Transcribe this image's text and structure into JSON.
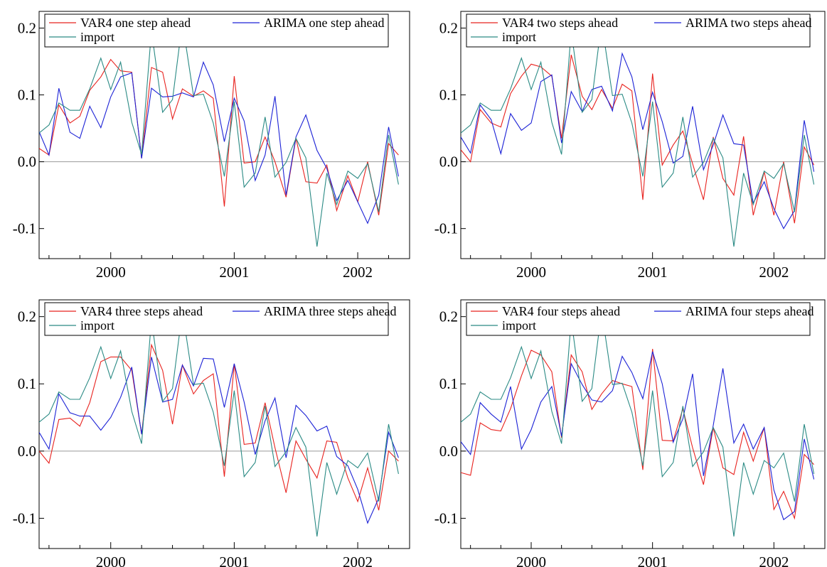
{
  "colors": {
    "var4": "#e8231f",
    "arima": "#1c22d6",
    "import": "#2a8a84",
    "zero": "#999999",
    "axis": "#000000"
  },
  "chart_data": [
    {
      "type": "line",
      "xlim": [
        1999.42,
        2002.42
      ],
      "ylim": [
        -0.145,
        0.225
      ],
      "y_ticks": [
        -0.1,
        0.0,
        0.1,
        0.2
      ],
      "y_tick_labels": [
        "-0.1",
        "0.0",
        "0.1",
        "0.2"
      ],
      "x_ticks": [
        2000,
        2001,
        2002
      ],
      "x_tick_labels": [
        "2000",
        "2001",
        "2002"
      ],
      "legend_placement": "top",
      "x": [
        1999.42,
        1999.5,
        1999.58,
        1999.67,
        1999.75,
        1999.83,
        1999.92,
        2000.0,
        2000.08,
        2000.17,
        2000.25,
        2000.33,
        2000.42,
        2000.5,
        2000.58,
        2000.67,
        2000.75,
        2000.83,
        2000.92,
        2001.0,
        2001.08,
        2001.17,
        2001.25,
        2001.33,
        2001.42,
        2001.5,
        2001.58,
        2001.67,
        2001.75,
        2001.83,
        2001.92,
        2002.0,
        2002.08,
        2002.17,
        2002.25,
        2002.33
      ],
      "series": [
        {
          "name": "VAR4 one step ahead",
          "key": "var4",
          "values": [
            0.02,
            0.01,
            0.085,
            0.058,
            0.068,
            0.107,
            0.127,
            0.153,
            0.136,
            0.134,
            0.005,
            0.141,
            0.134,
            0.064,
            0.109,
            0.098,
            0.106,
            0.095,
            -0.067,
            0.128,
            -0.002,
            0.0,
            0.037,
            0.0,
            -0.053,
            0.035,
            -0.03,
            -0.032,
            -0.005,
            -0.073,
            -0.021,
            -0.06,
            0.0,
            -0.08,
            0.027,
            0.01
          ]
        },
        {
          "name": "ARIMA one step ahead",
          "key": "arima",
          "values": [
            0.045,
            0.01,
            0.11,
            0.044,
            0.035,
            0.083,
            0.051,
            0.097,
            0.127,
            0.133,
            0.005,
            0.11,
            0.097,
            0.098,
            0.103,
            0.097,
            0.149,
            0.115,
            0.03,
            0.095,
            0.061,
            -0.028,
            0.01,
            0.098,
            -0.05,
            0.037,
            0.07,
            0.017,
            -0.01,
            -0.058,
            -0.028,
            -0.06,
            -0.092,
            -0.05,
            0.052,
            -0.022
          ]
        },
        {
          "name": "import",
          "key": "import",
          "values": [
            0.043,
            0.055,
            0.088,
            0.077,
            0.077,
            0.109,
            0.155,
            0.108,
            0.149,
            0.059,
            0.011,
            0.196,
            0.074,
            0.093,
            0.209,
            0.099,
            0.101,
            0.058,
            -0.022,
            0.09,
            -0.038,
            -0.017,
            0.067,
            -0.023,
            -0.001,
            0.035,
            0.006,
            -0.127,
            -0.017,
            -0.064,
            -0.014,
            -0.025,
            -0.003,
            -0.075,
            0.04,
            -0.034
          ]
        }
      ]
    },
    {
      "type": "line",
      "xlim": [
        1999.42,
        2002.42
      ],
      "ylim": [
        -0.145,
        0.225
      ],
      "y_ticks": [
        -0.1,
        0.0,
        0.1,
        0.2
      ],
      "y_tick_labels": [
        "-0.1",
        "0.0",
        "0.1",
        "0.2"
      ],
      "x_ticks": [
        2000,
        2001,
        2002
      ],
      "x_tick_labels": [
        "2000",
        "2001",
        "2002"
      ],
      "legend_placement": "top",
      "x": [
        1999.42,
        1999.5,
        1999.58,
        1999.67,
        1999.75,
        1999.83,
        1999.92,
        2000.0,
        2000.08,
        2000.17,
        2000.25,
        2000.33,
        2000.42,
        2000.5,
        2000.58,
        2000.67,
        2000.75,
        2000.83,
        2000.92,
        2001.0,
        2001.08,
        2001.17,
        2001.25,
        2001.33,
        2001.42,
        2001.5,
        2001.58,
        2001.67,
        2001.75,
        2001.83,
        2001.92,
        2002.0,
        2002.08,
        2002.17,
        2002.25,
        2002.33
      ],
      "series": [
        {
          "name": "VAR4 two steps ahead",
          "key": "var4",
          "values": [
            0.018,
            0.0,
            0.078,
            0.058,
            0.052,
            0.102,
            0.128,
            0.146,
            0.142,
            0.128,
            0.035,
            0.16,
            0.098,
            0.078,
            0.108,
            0.08,
            0.116,
            0.106,
            -0.057,
            0.132,
            -0.005,
            0.025,
            0.046,
            -0.003,
            -0.057,
            0.037,
            -0.025,
            -0.05,
            0.038,
            -0.08,
            -0.015,
            -0.08,
            0.0,
            -0.092,
            0.022,
            -0.005
          ]
        },
        {
          "name": "ARIMA two steps ahead",
          "key": "arima",
          "values": [
            0.037,
            0.013,
            0.085,
            0.063,
            0.012,
            0.072,
            0.047,
            0.058,
            0.12,
            0.13,
            0.028,
            0.105,
            0.075,
            0.108,
            0.113,
            0.076,
            0.162,
            0.127,
            0.048,
            0.104,
            0.06,
            -0.002,
            0.008,
            0.083,
            -0.012,
            0.025,
            0.07,
            0.027,
            0.025,
            -0.062,
            -0.03,
            -0.07,
            -0.1,
            -0.073,
            0.062,
            -0.015
          ]
        },
        {
          "name": "import",
          "key": "import",
          "values": [
            0.043,
            0.055,
            0.088,
            0.077,
            0.077,
            0.109,
            0.155,
            0.108,
            0.149,
            0.059,
            0.011,
            0.196,
            0.074,
            0.093,
            0.209,
            0.099,
            0.101,
            0.058,
            -0.022,
            0.09,
            -0.038,
            -0.017,
            0.067,
            -0.023,
            -0.001,
            0.035,
            0.006,
            -0.127,
            -0.017,
            -0.064,
            -0.014,
            -0.025,
            -0.003,
            -0.075,
            0.04,
            -0.034
          ]
        }
      ]
    },
    {
      "type": "line",
      "xlim": [
        1999.42,
        2002.42
      ],
      "ylim": [
        -0.145,
        0.225
      ],
      "y_ticks": [
        -0.1,
        0.0,
        0.1,
        0.2
      ],
      "y_tick_labels": [
        "-0.1",
        "0.0",
        "0.1",
        "0.2"
      ],
      "x_ticks": [
        2000,
        2001,
        2002
      ],
      "x_tick_labels": [
        "2000",
        "2001",
        "2002"
      ],
      "legend_placement": "top",
      "x": [
        1999.42,
        1999.5,
        1999.58,
        1999.67,
        1999.75,
        1999.83,
        1999.92,
        2000.0,
        2000.08,
        2000.17,
        2000.25,
        2000.33,
        2000.42,
        2000.5,
        2000.58,
        2000.67,
        2000.75,
        2000.83,
        2000.92,
        2001.0,
        2001.08,
        2001.17,
        2001.25,
        2001.33,
        2001.42,
        2001.5,
        2001.58,
        2001.67,
        2001.75,
        2001.83,
        2001.92,
        2002.0,
        2002.08,
        2002.17,
        2002.25,
        2002.33
      ],
      "series": [
        {
          "name": "VAR4 three steps ahead",
          "key": "var4",
          "values": [
            0.0,
            -0.018,
            0.047,
            0.049,
            0.037,
            0.072,
            0.133,
            0.14,
            0.14,
            0.12,
            0.025,
            0.158,
            0.12,
            0.04,
            0.128,
            0.085,
            0.105,
            0.115,
            -0.038,
            0.13,
            0.01,
            0.012,
            0.072,
            0.005,
            -0.062,
            0.015,
            -0.012,
            -0.04,
            0.015,
            0.013,
            -0.04,
            -0.075,
            -0.025,
            -0.088,
            0.0,
            -0.015
          ]
        },
        {
          "name": "ARIMA three steps ahead",
          "key": "arima",
          "values": [
            0.028,
            0.003,
            0.085,
            0.057,
            0.052,
            0.052,
            0.031,
            0.05,
            0.08,
            0.125,
            0.025,
            0.14,
            0.073,
            0.077,
            0.128,
            0.097,
            0.138,
            0.137,
            0.065,
            0.13,
            0.073,
            -0.005,
            0.045,
            0.079,
            -0.01,
            0.068,
            0.053,
            0.03,
            0.037,
            -0.008,
            -0.022,
            -0.057,
            -0.107,
            -0.07,
            0.028,
            -0.01
          ]
        },
        {
          "name": "import",
          "key": "import",
          "values": [
            0.043,
            0.055,
            0.088,
            0.077,
            0.077,
            0.109,
            0.155,
            0.108,
            0.149,
            0.059,
            0.011,
            0.196,
            0.074,
            0.093,
            0.209,
            0.099,
            0.101,
            0.058,
            -0.022,
            0.09,
            -0.038,
            -0.017,
            0.067,
            -0.023,
            -0.001,
            0.035,
            0.006,
            -0.127,
            -0.017,
            -0.064,
            -0.014,
            -0.025,
            -0.003,
            -0.075,
            0.04,
            -0.034
          ]
        }
      ]
    },
    {
      "type": "line",
      "xlim": [
        1999.42,
        2002.42
      ],
      "ylim": [
        -0.145,
        0.225
      ],
      "y_ticks": [
        -0.1,
        0.0,
        0.1,
        0.2
      ],
      "y_tick_labels": [
        "-0.1",
        "0.0",
        "0.1",
        "0.2"
      ],
      "x_ticks": [
        2000,
        2001,
        2002
      ],
      "x_tick_labels": [
        "2000",
        "2001",
        "2002"
      ],
      "legend_placement": "top",
      "x": [
        1999.42,
        1999.5,
        1999.58,
        1999.67,
        1999.75,
        1999.83,
        1999.92,
        2000.0,
        2000.08,
        2000.17,
        2000.25,
        2000.33,
        2000.42,
        2000.5,
        2000.58,
        2000.67,
        2000.75,
        2000.83,
        2000.92,
        2001.0,
        2001.08,
        2001.17,
        2001.25,
        2001.33,
        2001.42,
        2001.5,
        2001.58,
        2001.67,
        2001.75,
        2001.83,
        2001.92,
        2002.0,
        2002.08,
        2002.17,
        2002.25,
        2002.33
      ],
      "series": [
        {
          "name": "VAR4 four steps ahead",
          "key": "var4",
          "values": [
            -0.032,
            -0.036,
            0.042,
            0.032,
            0.03,
            0.063,
            0.112,
            0.15,
            0.143,
            0.118,
            0.02,
            0.143,
            0.118,
            0.062,
            0.085,
            0.105,
            0.1,
            0.096,
            -0.028,
            0.152,
            0.016,
            0.015,
            0.063,
            0.005,
            -0.05,
            0.035,
            -0.025,
            -0.035,
            0.028,
            -0.015,
            0.035,
            -0.087,
            -0.06,
            -0.1,
            -0.005,
            -0.02
          ]
        },
        {
          "name": "ARIMA four steps ahead",
          "key": "arima",
          "values": [
            0.014,
            -0.005,
            0.072,
            0.055,
            0.043,
            0.096,
            0.003,
            0.032,
            0.073,
            0.096,
            0.022,
            0.13,
            0.099,
            0.076,
            0.073,
            0.09,
            0.141,
            0.117,
            0.078,
            0.148,
            0.1,
            0.013,
            0.048,
            0.115,
            -0.037,
            0.038,
            0.123,
            0.012,
            0.04,
            0.003,
            0.035,
            -0.058,
            -0.102,
            -0.09,
            0.018,
            -0.042
          ]
        },
        {
          "name": "import",
          "key": "import",
          "values": [
            0.043,
            0.055,
            0.088,
            0.077,
            0.077,
            0.109,
            0.155,
            0.108,
            0.149,
            0.059,
            0.011,
            0.196,
            0.074,
            0.093,
            0.209,
            0.099,
            0.101,
            0.058,
            -0.022,
            0.09,
            -0.038,
            -0.017,
            0.067,
            -0.023,
            -0.001,
            0.035,
            0.006,
            -0.127,
            -0.017,
            -0.064,
            -0.014,
            -0.025,
            -0.003,
            -0.075,
            0.04,
            -0.034
          ]
        }
      ]
    }
  ]
}
